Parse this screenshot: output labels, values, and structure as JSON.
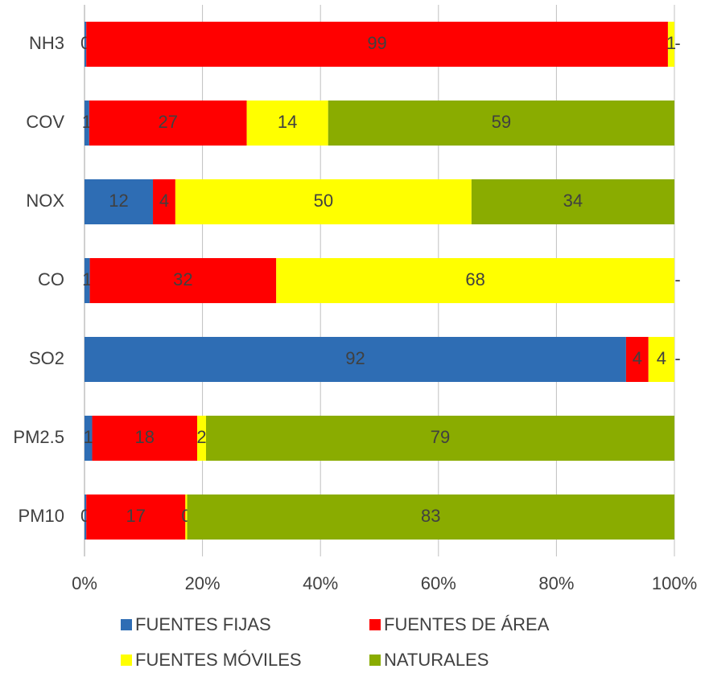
{
  "chart_data": {
    "type": "stacked-barh",
    "categories": [
      "NH3",
      "COV",
      "NOX",
      "CO",
      "SO2",
      "PM2.5",
      "PM10"
    ],
    "series": [
      {
        "name": "FUENTES FIJAS",
        "color": "#2e6db4",
        "values": [
          0.3,
          0.8,
          11.6,
          0.9,
          91.8,
          1.3,
          0.3
        ],
        "value_labels": [
          "0",
          "1",
          "12",
          "1",
          "92",
          "1",
          "0"
        ]
      },
      {
        "name": "FUENTES DE ÁREA",
        "color": "#ff0000",
        "values": [
          98.6,
          26.7,
          3.8,
          31.6,
          3.8,
          17.8,
          16.8
        ],
        "value_labels": [
          "99",
          "27",
          "4",
          "32",
          "4",
          "18",
          "17"
        ]
      },
      {
        "name": "FUENTES MÓVILES",
        "color": "#ffff00",
        "values": [
          1.1,
          13.8,
          50.2,
          67.5,
          4.4,
          1.5,
          0.3
        ],
        "value_labels": [
          "1",
          "14",
          "50",
          "68",
          "4",
          "2",
          "0"
        ]
      },
      {
        "name": "NATURALES",
        "color": "#8aac00",
        "values": [
          0,
          58.7,
          34.4,
          0,
          0,
          79.4,
          82.6
        ],
        "value_labels": [
          "-",
          "59",
          "34",
          "-",
          "-",
          "79",
          "83"
        ]
      }
    ],
    "xlim": [
      0,
      100
    ],
    "xticks": [
      {
        "value": 0,
        "label": "0%"
      },
      {
        "value": 20,
        "label": "20%"
      },
      {
        "value": 40,
        "label": "40%"
      },
      {
        "value": 60,
        "label": "60%"
      },
      {
        "value": 80,
        "label": "80%"
      },
      {
        "value": 100,
        "label": "100%"
      }
    ],
    "grid": true
  }
}
